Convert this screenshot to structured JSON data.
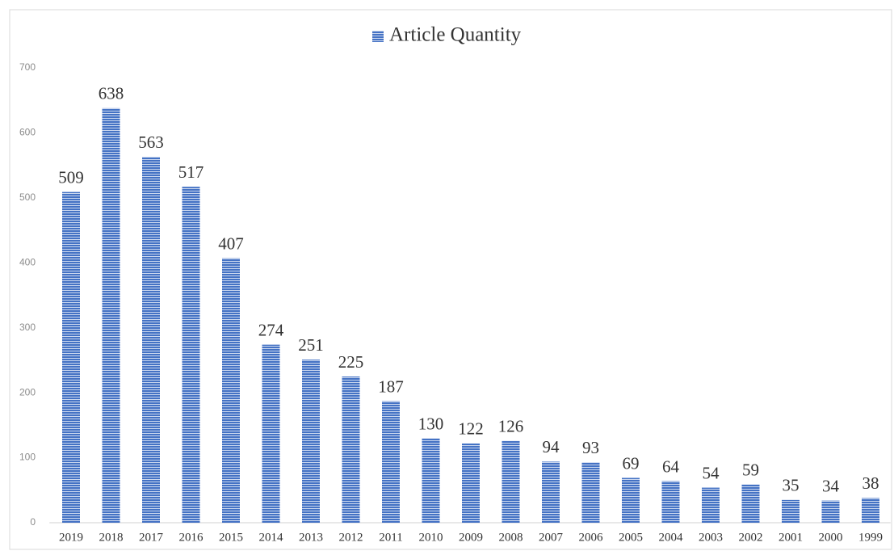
{
  "chart_data": {
    "type": "bar",
    "categories": [
      "2019",
      "2018",
      "2017",
      "2016",
      "2015",
      "2014",
      "2013",
      "2012",
      "2011",
      "2010",
      "2009",
      "2008",
      "2007",
      "2006",
      "2005",
      "2004",
      "2003",
      "2002",
      "2001",
      "2000",
      "1999"
    ],
    "series": [
      {
        "name": "Article Quantity",
        "color": "#4472c4",
        "values": [
          509,
          638,
          563,
          517,
          407,
          274,
          251,
          225,
          187,
          130,
          122,
          126,
          94,
          93,
          69,
          64,
          54,
          59,
          35,
          34,
          38
        ]
      }
    ],
    "ylim": [
      0,
      700
    ],
    "yticks": [
      0,
      100,
      200,
      300,
      400,
      500,
      600,
      700
    ],
    "grid": false,
    "legend": "top"
  }
}
